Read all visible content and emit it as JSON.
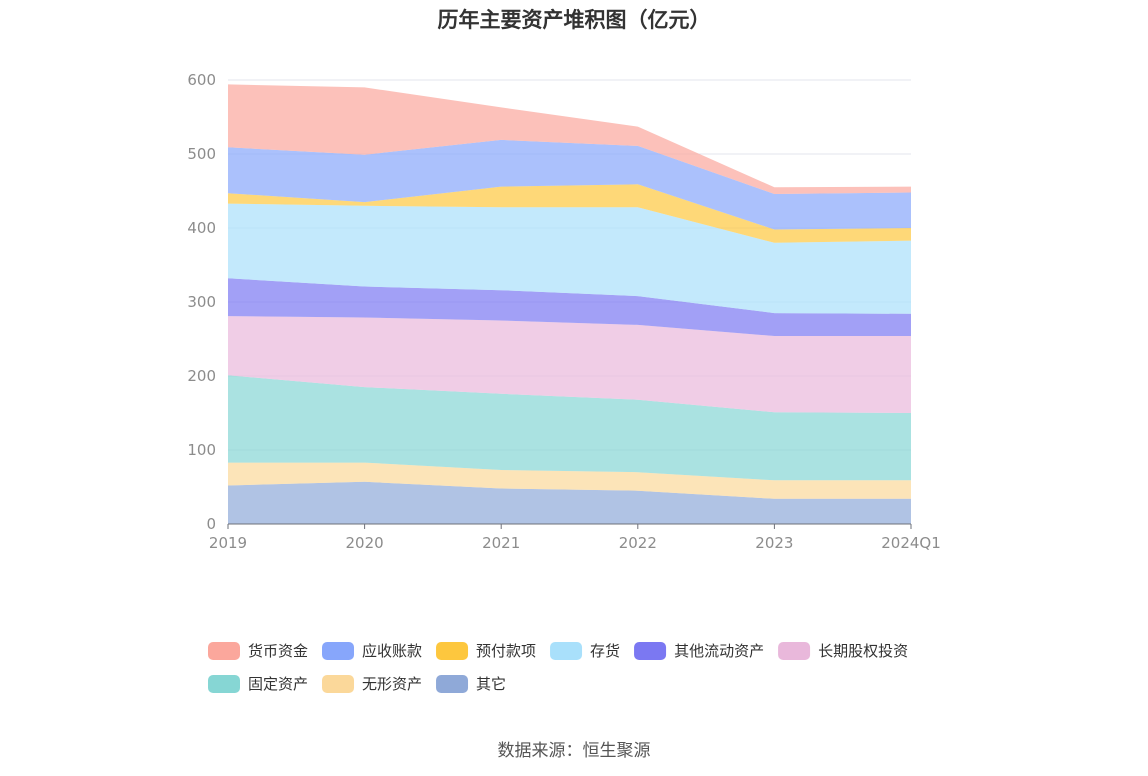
{
  "chart_data": {
    "type": "area",
    "stacked": true,
    "title": "历年主要资产堆积图（亿元）",
    "categories": [
      "2019",
      "2020",
      "2021",
      "2022",
      "2023",
      "2024Q1"
    ],
    "ylim": [
      0,
      600
    ],
    "yticks": [
      0,
      100,
      200,
      300,
      400,
      500,
      600
    ],
    "grid": true,
    "legend_position": "bottom",
    "series": [
      {
        "name": "其它",
        "color": "#8fa9d8",
        "values": [
          52,
          57,
          48,
          45,
          34,
          34
        ]
      },
      {
        "name": "无形资产",
        "color": "#fbd89a",
        "values": [
          31,
          26,
          25,
          25,
          25,
          25
        ]
      },
      {
        "name": "固定资产",
        "color": "#86d6d4",
        "values": [
          118,
          102,
          103,
          98,
          92,
          91
        ]
      },
      {
        "name": "长期股权投资",
        "color": "#e9b8db",
        "values": [
          80,
          94,
          99,
          101,
          103,
          104
        ]
      },
      {
        "name": "其他流动资产",
        "color": "#7b78f2",
        "values": [
          51,
          42,
          41,
          39,
          31,
          30
        ]
      },
      {
        "name": "存货",
        "color": "#a9e0fb",
        "values": [
          101,
          109,
          112,
          120,
          95,
          99
        ]
      },
      {
        "name": "预付款项",
        "color": "#fdc73e",
        "values": [
          14,
          5,
          28,
          31,
          18,
          17
        ]
      },
      {
        "name": "应收账款",
        "color": "#87a6fb",
        "values": [
          62,
          64,
          63,
          52,
          48,
          48
        ]
      },
      {
        "name": "货币资金",
        "color": "#fba79c",
        "values": [
          85,
          91,
          44,
          26,
          9,
          8
        ]
      }
    ],
    "legend_order": [
      "货币资金",
      "应收账款",
      "预付款项",
      "存货",
      "其他流动资产",
      "长期股权投资",
      "固定资产",
      "无形资产",
      "其它"
    ]
  },
  "source": "数据来源：恒生聚源"
}
